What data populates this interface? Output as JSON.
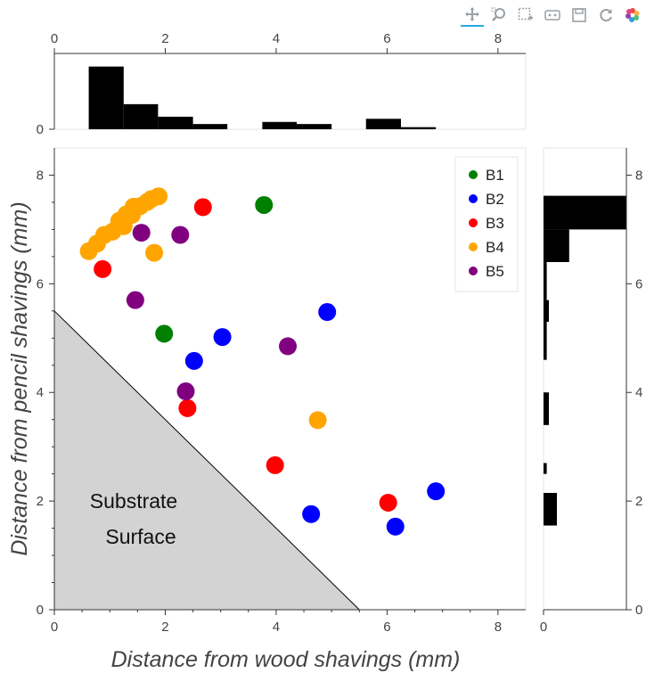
{
  "toolbar": {
    "tools": [
      {
        "name": "pan-tool-icon",
        "active": true
      },
      {
        "name": "box-zoom-tool-icon",
        "active": false
      },
      {
        "name": "box-select-tool-icon",
        "active": false
      },
      {
        "name": "hover-tool-icon",
        "active": false
      },
      {
        "name": "save-tool-icon",
        "active": false
      },
      {
        "name": "reset-tool-icon",
        "active": false
      },
      {
        "name": "bokeh-logo",
        "active": false
      }
    ]
  },
  "chart_data": {
    "type": "scatter",
    "xlabel": "Distance from wood shavings (mm)",
    "ylabel": "Distance from pencil shavings (mm)",
    "xlim": [
      0,
      8.5
    ],
    "ylim": [
      0,
      8.5
    ],
    "x_ticks": [
      0,
      2,
      4,
      6,
      8
    ],
    "y_ticks": [
      0,
      2,
      4,
      6,
      8
    ],
    "legend_position": "top-right",
    "series": [
      {
        "name": "B1",
        "color": "#008000",
        "points": [
          [
            3.78,
            7.45
          ],
          [
            1.98,
            5.08
          ]
        ]
      },
      {
        "name": "B2",
        "color": "#0000ff",
        "points": [
          [
            4.92,
            5.48
          ],
          [
            3.03,
            5.02
          ],
          [
            2.52,
            4.58
          ],
          [
            6.88,
            2.18
          ],
          [
            4.63,
            1.76
          ],
          [
            6.15,
            1.53
          ]
        ]
      },
      {
        "name": "B3",
        "color": "#ff0000",
        "points": [
          [
            2.68,
            7.41
          ],
          [
            0.87,
            6.27
          ],
          [
            2.4,
            3.71
          ],
          [
            3.98,
            2.66
          ],
          [
            6.02,
            1.97
          ]
        ]
      },
      {
        "name": "B4",
        "color": "#ffa500",
        "points": [
          [
            0.62,
            6.6
          ],
          [
            0.77,
            6.74
          ],
          [
            0.9,
            6.9
          ],
          [
            1.05,
            6.96
          ],
          [
            1.17,
            7.16
          ],
          [
            1.25,
            7.06
          ],
          [
            1.3,
            7.28
          ],
          [
            1.4,
            7.27
          ],
          [
            1.43,
            7.42
          ],
          [
            1.55,
            7.43
          ],
          [
            1.68,
            7.51
          ],
          [
            1.75,
            7.56
          ],
          [
            1.88,
            7.61
          ],
          [
            1.8,
            6.57
          ],
          [
            4.75,
            3.49
          ]
        ]
      },
      {
        "name": "B5",
        "color": "#800080",
        "points": [
          [
            1.57,
            6.94
          ],
          [
            2.27,
            6.9
          ],
          [
            1.46,
            5.7
          ],
          [
            4.21,
            4.85
          ],
          [
            2.37,
            4.02
          ]
        ]
      }
    ],
    "substrate_region": {
      "vertices": [
        [
          0,
          5.5
        ],
        [
          0,
          0
        ],
        [
          5.5,
          0
        ]
      ],
      "fill": "#d3d3d3",
      "label_lines": [
        "Substrate",
        "Surface"
      ]
    },
    "top_histogram": {
      "ylim": [
        0,
        1.45
      ],
      "y_ticks": [
        0
      ],
      "x_ticks": [
        0,
        2,
        4,
        6,
        8
      ],
      "bins": [
        {
          "from": 0.62,
          "to": 1.25,
          "value": 1.2
        },
        {
          "from": 1.25,
          "to": 1.87,
          "value": 0.48
        },
        {
          "from": 1.87,
          "to": 2.5,
          "value": 0.24
        },
        {
          "from": 2.5,
          "to": 3.12,
          "value": 0.1
        },
        {
          "from": 3.75,
          "to": 4.37,
          "value": 0.14
        },
        {
          "from": 4.37,
          "to": 5.0,
          "value": 0.1
        },
        {
          "from": 5.62,
          "to": 6.25,
          "value": 0.2
        },
        {
          "from": 6.25,
          "to": 6.88,
          "value": 0.04
        }
      ]
    },
    "right_histogram": {
      "xlim": [
        0,
        1.55
      ],
      "x_ticks": [
        0
      ],
      "y_ticks": [
        0,
        2,
        4,
        6,
        8
      ],
      "bins": [
        {
          "from": 7.0,
          "to": 7.62,
          "value": 1.55
        },
        {
          "from": 6.4,
          "to": 7.0,
          "value": 0.48
        },
        {
          "from": 5.7,
          "to": 6.4,
          "value": 0.06
        },
        {
          "from": 5.3,
          "to": 5.7,
          "value": 0.1
        },
        {
          "from": 4.6,
          "to": 5.3,
          "value": 0.06
        },
        {
          "from": 3.4,
          "to": 4.0,
          "value": 0.1
        },
        {
          "from": 2.5,
          "to": 2.7,
          "value": 0.06
        },
        {
          "from": 1.55,
          "to": 2.15,
          "value": 0.25
        }
      ]
    }
  }
}
